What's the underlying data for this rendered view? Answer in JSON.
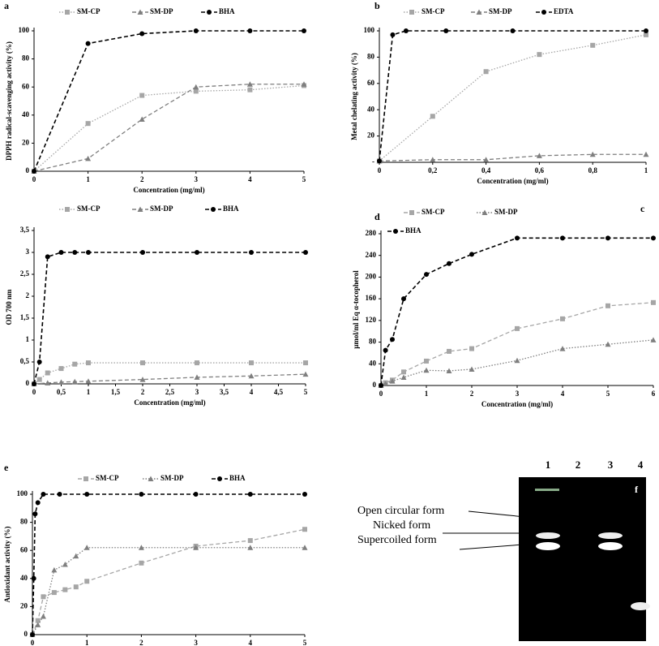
{
  "chart_data": [
    {
      "type": "line",
      "panel": "a",
      "ylabel": "DPPH radical-scavenging activity (%)",
      "xlabel": "Concentration (mg/ml)",
      "xlim": [
        0,
        5
      ],
      "xticks": [
        0,
        1,
        2,
        3,
        4,
        5
      ],
      "ylim": [
        0,
        100
      ],
      "yticks": [
        0,
        20,
        40,
        60,
        80,
        100
      ],
      "series": [
        {
          "name": "SM-CP",
          "color": "#a6a6a6",
          "marker": "square",
          "dash": "dotted",
          "x": [
            0,
            1,
            2,
            3,
            4,
            5
          ],
          "values": [
            0,
            34,
            54,
            57,
            58,
            61
          ]
        },
        {
          "name": "SM-DP",
          "color": "#7f7f7f",
          "marker": "triangle",
          "dash": "dashed",
          "x": [
            0,
            1,
            2,
            3,
            4,
            5
          ],
          "values": [
            0,
            9,
            37,
            60,
            62,
            62
          ]
        },
        {
          "name": "BHA",
          "color": "#000000",
          "marker": "circle",
          "dash": "dashed",
          "x": [
            0,
            1,
            2,
            3,
            4,
            5
          ],
          "values": [
            0,
            91,
            98,
            100,
            100,
            100
          ]
        }
      ]
    },
    {
      "type": "line",
      "panel": "b",
      "ylabel": "Metal  chelating activity (%)",
      "xlabel": "Concentration (mg/ml)",
      "xlim": [
        0,
        1
      ],
      "xticks": [
        0,
        {
          "value": 0.2,
          "label": "0,2"
        },
        {
          "value": 0.4,
          "label": "0,4"
        },
        {
          "value": 0.6,
          "label": "0,6"
        },
        {
          "value": 0.8,
          "label": "0,8"
        },
        1
      ],
      "ylim": [
        0,
        100
      ],
      "yticks": [
        {
          "value": 0,
          "label": "-"
        },
        20,
        40,
        60,
        80,
        100
      ],
      "series": [
        {
          "name": "SM-CP",
          "color": "#a6a6a6",
          "marker": "square",
          "dash": "dotted",
          "x": [
            0,
            0.2,
            0.4,
            0.6,
            0.8,
            1
          ],
          "values": [
            1,
            35,
            69,
            82,
            89,
            97
          ]
        },
        {
          "name": "SM-DP",
          "color": "#7f7f7f",
          "marker": "triangle",
          "dash": "dashed",
          "x": [
            0,
            0.2,
            0.4,
            0.6,
            0.8,
            1
          ],
          "values": [
            1,
            2,
            2,
            5,
            6,
            6
          ]
        },
        {
          "name": "EDTA",
          "color": "#000000",
          "marker": "circle",
          "dash": "dashed",
          "x": [
            0,
            0.05,
            0.1,
            0.25,
            0.5,
            1
          ],
          "values": [
            1,
            97,
            100,
            100,
            100,
            100
          ]
        }
      ]
    },
    {
      "type": "line",
      "panel": "c",
      "ylabel": "OD 700 nm",
      "xlabel": "Concentration (mg/ml)",
      "xlim": [
        0,
        5
      ],
      "xticks": [
        0,
        {
          "value": 0.5,
          "label": "0,5"
        },
        1,
        {
          "value": 1.5,
          "label": "1,5"
        },
        2,
        {
          "value": 2.5,
          "label": "2,5"
        },
        3,
        {
          "value": 3.5,
          "label": "3,5"
        },
        4,
        {
          "value": 4.5,
          "label": "4,5"
        },
        5
      ],
      "ylim": [
        0,
        3.5
      ],
      "yticks": [
        0,
        {
          "value": 0.5,
          "label": "0,5"
        },
        1,
        {
          "value": 1.5,
          "label": "1,5"
        },
        2,
        {
          "value": 2.5,
          "label": "2,5"
        },
        3,
        {
          "value": 3.5,
          "label": "3,5"
        }
      ],
      "series": [
        {
          "name": "SM-CP",
          "color": "#a6a6a6",
          "marker": "square",
          "dash": "dotted",
          "x": [
            0,
            0.1,
            0.25,
            0.5,
            0.75,
            1,
            2,
            3,
            4,
            5
          ],
          "values": [
            0,
            0.1,
            0.25,
            0.35,
            0.45,
            0.48,
            0.48,
            0.48,
            0.48,
            0.48
          ]
        },
        {
          "name": "SM-DP",
          "color": "#7f7f7f",
          "marker": "triangle",
          "dash": "dashed",
          "x": [
            0,
            0.25,
            0.5,
            0.75,
            1,
            2,
            3,
            4,
            5
          ],
          "values": [
            0,
            0.02,
            0.04,
            0.05,
            0.06,
            0.1,
            0.15,
            0.18,
            0.22
          ]
        },
        {
          "name": "BHA",
          "color": "#000000",
          "marker": "circle",
          "dash": "dashed",
          "x": [
            0,
            0.1,
            0.25,
            0.5,
            0.75,
            1,
            2,
            3,
            4,
            5
          ],
          "values": [
            0,
            0.5,
            2.9,
            3,
            3,
            3,
            3,
            3,
            3,
            3
          ]
        }
      ]
    },
    {
      "type": "line",
      "panel": "d",
      "ylabel": "µmol/ml Eq α-tocopherol",
      "xlabel": "Concentration (mg/ml)",
      "xlim": [
        0,
        6
      ],
      "xticks": [
        0,
        1,
        2,
        3,
        4,
        5,
        6
      ],
      "ylim": [
        0,
        280
      ],
      "yticks": [
        0,
        40,
        80,
        120,
        160,
        200,
        240,
        280
      ],
      "series": [
        {
          "name": "SM-CP",
          "color": "#a6a6a6",
          "marker": "square",
          "dash": "dashed",
          "x": [
            0,
            0.1,
            0.25,
            0.5,
            1,
            1.5,
            2,
            3,
            4,
            5,
            6
          ],
          "values": [
            0,
            5,
            10,
            25,
            45,
            63,
            68,
            105,
            123,
            147,
            153
          ]
        },
        {
          "name": "SM-DP",
          "color": "#7f7f7f",
          "marker": "triangle",
          "dash": "dotted",
          "x": [
            0,
            0.1,
            0.25,
            0.5,
            1,
            1.5,
            2,
            3,
            4,
            5,
            6
          ],
          "values": [
            0,
            3,
            8,
            15,
            28,
            27,
            30,
            46,
            68,
            76,
            84
          ]
        },
        {
          "name": "BHA",
          "color": "#000000",
          "marker": "circle",
          "dash": "dashed",
          "x": [
            0,
            0.1,
            0.25,
            0.5,
            1,
            1.5,
            2,
            3,
            4,
            5,
            6
          ],
          "values": [
            0,
            65,
            85,
            160,
            205,
            225,
            242,
            272,
            272,
            272,
            272
          ]
        }
      ]
    },
    {
      "type": "line",
      "panel": "e",
      "ylabel": "Antioxidant activity (%)",
      "xlabel": "Concentration (mg/ml)",
      "xlim": [
        0,
        5
      ],
      "xticks": [
        0,
        1,
        2,
        3,
        4,
        5
      ],
      "ylim": [
        0,
        100
      ],
      "yticks": [
        0,
        20,
        40,
        60,
        80,
        100
      ],
      "series": [
        {
          "name": "SM-CP",
          "color": "#a6a6a6",
          "marker": "square",
          "dash": "dashed",
          "x": [
            0,
            0.1,
            0.2,
            0.4,
            0.6,
            0.8,
            1,
            2,
            3,
            4,
            5
          ],
          "values": [
            0,
            10,
            27,
            30,
            32,
            34,
            38,
            51,
            63,
            67,
            75
          ]
        },
        {
          "name": "SM-DP",
          "color": "#7f7f7f",
          "marker": "triangle",
          "dash": "dotted",
          "x": [
            0,
            0.1,
            0.2,
            0.4,
            0.6,
            0.8,
            1,
            2,
            3,
            4,
            5
          ],
          "values": [
            0,
            7,
            13,
            46,
            50,
            56,
            62,
            62,
            62,
            62,
            62
          ]
        },
        {
          "name": "BHA",
          "color": "#000000",
          "marker": "circle",
          "dash": "dashed",
          "x": [
            0,
            0.025,
            0.05,
            0.1,
            0.2,
            0.5,
            1,
            2,
            3,
            4,
            5
          ],
          "values": [
            0,
            40,
            86,
            94,
            100,
            100,
            100,
            100,
            100,
            100,
            100
          ]
        }
      ]
    }
  ],
  "gel": {
    "panel": "f",
    "lanes": [
      "1",
      "2",
      "3",
      "4"
    ],
    "labels": [
      "Open circular form",
      "Nicked form",
      "Supercoiled form"
    ]
  }
}
